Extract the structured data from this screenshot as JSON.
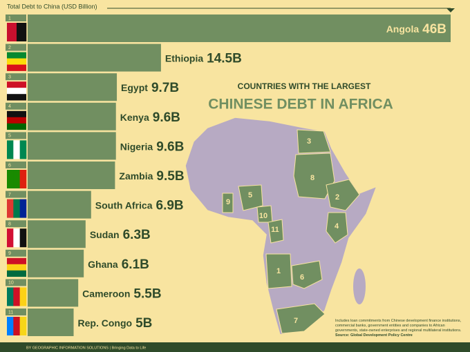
{
  "chart_data": {
    "type": "bar",
    "orientation": "horizontal",
    "title": "CHINESE DEBT IN AFRICA",
    "subtitle": "COUNTRIES WITH THE LARGEST",
    "x_label": "Total Debt to China (USD Billion)",
    "categories": [
      "Angola",
      "Ethiopia",
      "Egypt",
      "Kenya",
      "Nigeria",
      "Zambia",
      "South Africa",
      "Sudan",
      "Ghana",
      "Cameroon",
      "Rep. Congo"
    ],
    "ranks": [
      1,
      2,
      3,
      4,
      5,
      6,
      7,
      8,
      9,
      10,
      11
    ],
    "values": [
      46,
      14.5,
      9.7,
      9.6,
      9.6,
      9.5,
      6.9,
      6.3,
      6.1,
      5.5,
      5
    ],
    "value_labels": [
      "46B",
      "14.5B",
      "9.7B",
      "9.6B",
      "9.6B",
      "9.5B",
      "6.9B",
      "6.3B",
      "6.1B",
      "5.5B",
      "5B"
    ],
    "color": "#718f61",
    "xlim": [
      0,
      46
    ],
    "note": "Includes loan commitments from Chinese development finance institutions, commercial banks, government entities and companies to African governments, state-owned enterprises and regional multilateral institutions.",
    "source": "Source: Global Development Policy Centre",
    "footer": "BY GEOGRAPHIC INFORMATION SOLUTIONS | Bringing Data to Life"
  }
}
